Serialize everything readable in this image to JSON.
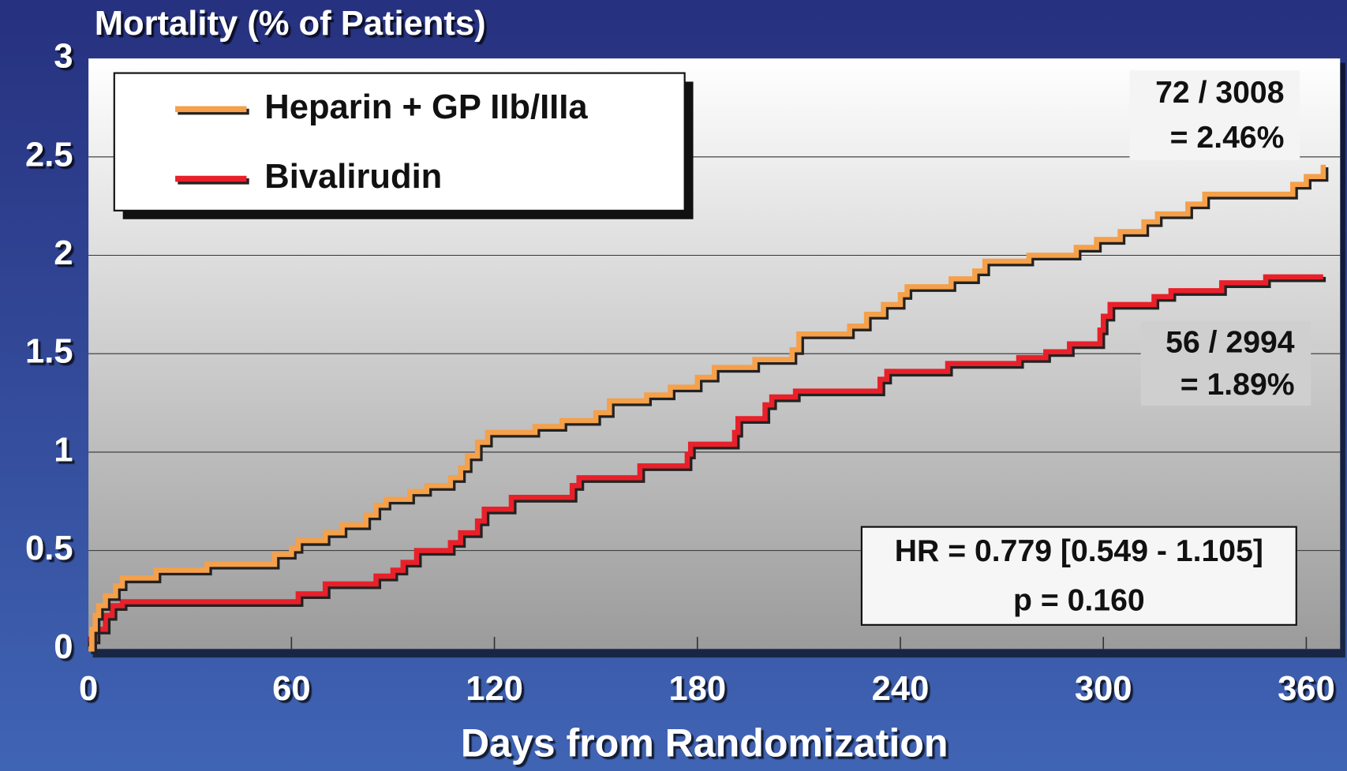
{
  "chart_data": {
    "type": "line",
    "step": true,
    "title": "Mortality (% of Patients)",
    "x_label": "Days from Randomization",
    "xlim": [
      0,
      370
    ],
    "ylim": [
      0,
      3
    ],
    "xticks": [
      0,
      60,
      120,
      180,
      240,
      300,
      360
    ],
    "yticks": [
      0,
      0.5,
      1,
      1.5,
      2,
      2.5,
      3
    ],
    "grid": true,
    "legend": "upper left",
    "series": [
      {
        "name": "Heparin + GP IIb/IIIa",
        "color": "#f5a04a",
        "x": [
          0,
          1,
          2,
          3,
          5,
          8,
          10,
          20,
          35,
          55,
          60,
          62,
          70,
          75,
          82,
          85,
          88,
          95,
          100,
          107,
          110,
          112,
          115,
          118,
          132,
          140,
          150,
          154,
          165,
          172,
          180,
          185,
          197,
          208,
          210,
          225,
          230,
          235,
          240,
          242,
          255,
          262,
          265,
          278,
          292,
          298,
          305,
          312,
          316,
          325,
          330,
          356,
          360,
          365
        ],
        "values": [
          0,
          0.1,
          0.17,
          0.22,
          0.27,
          0.32,
          0.36,
          0.4,
          0.43,
          0.48,
          0.51,
          0.55,
          0.59,
          0.63,
          0.68,
          0.73,
          0.76,
          0.8,
          0.83,
          0.87,
          0.92,
          0.98,
          1.05,
          1.1,
          1.13,
          1.16,
          1.2,
          1.26,
          1.29,
          1.33,
          1.38,
          1.43,
          1.47,
          1.52,
          1.6,
          1.64,
          1.7,
          1.75,
          1.8,
          1.84,
          1.88,
          1.92,
          1.97,
          2.0,
          2.04,
          2.08,
          2.12,
          2.17,
          2.21,
          2.26,
          2.31,
          2.36,
          2.4,
          2.46
        ]
      },
      {
        "name": "Bivalirudin",
        "color": "#e8202a",
        "x": [
          0,
          2,
          5,
          7,
          10,
          62,
          70,
          85,
          90,
          93,
          97,
          107,
          110,
          115,
          117,
          125,
          143,
          145,
          163,
          177,
          178,
          191,
          192,
          200,
          202,
          209,
          234,
          236,
          254,
          275,
          283,
          290,
          299,
          300,
          302,
          315,
          320,
          335,
          348,
          365
        ],
        "values": [
          0.05,
          0.1,
          0.17,
          0.22,
          0.24,
          0.28,
          0.33,
          0.37,
          0.4,
          0.44,
          0.5,
          0.54,
          0.59,
          0.65,
          0.71,
          0.77,
          0.83,
          0.87,
          0.93,
          0.99,
          1.04,
          1.1,
          1.17,
          1.24,
          1.28,
          1.31,
          1.37,
          1.41,
          1.45,
          1.48,
          1.51,
          1.55,
          1.62,
          1.69,
          1.75,
          1.79,
          1.82,
          1.86,
          1.89,
          1.89
        ]
      }
    ],
    "annotations": [
      {
        "lines": [
          "72 / 3008",
          "= 2.46%"
        ]
      },
      {
        "lines": [
          "56 / 2994",
          "= 1.89%"
        ]
      },
      {
        "lines": [
          "HR = 0.779 [0.549 - 1.105]",
          "p = 0.160"
        ]
      }
    ]
  }
}
